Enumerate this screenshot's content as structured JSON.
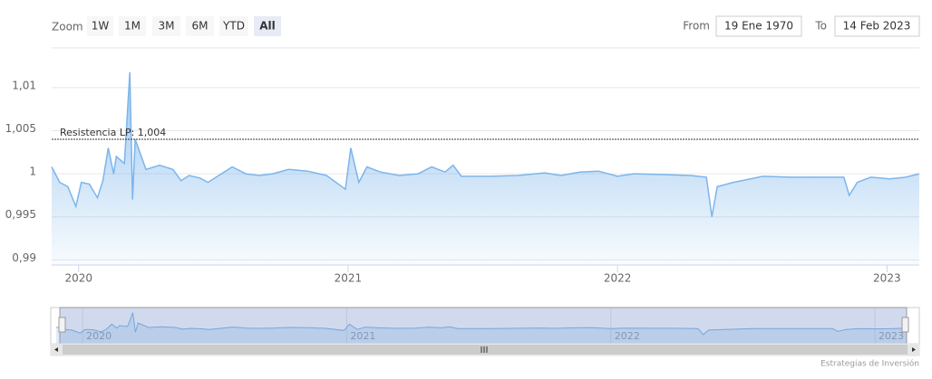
{
  "range_selector": {
    "label": "Zoom",
    "buttons": [
      "1W",
      "1M",
      "3M",
      "6M",
      "YTD",
      "All"
    ],
    "selected": 5
  },
  "date_range": {
    "from_label": "From",
    "from": "19 Ene 1970",
    "to_label": "To",
    "to": "14 Feb 2023"
  },
  "credit": "Estrategias de Inversión",
  "chart_data": {
    "type": "area",
    "color": "#7cb5ec",
    "grid": true,
    "x": [
      2019.9,
      2019.93,
      2019.96,
      2019.99,
      2020.01,
      2020.04,
      2020.07,
      2020.09,
      2020.11,
      2020.13,
      2020.14,
      2020.17,
      2020.19,
      2020.2,
      2020.21,
      2020.25,
      2020.3,
      2020.35,
      2020.38,
      2020.41,
      2020.45,
      2020.48,
      2020.52,
      2020.57,
      2020.62,
      2020.67,
      2020.72,
      2020.78,
      2020.85,
      2020.92,
      2020.99,
      2021.01,
      2021.04,
      2021.07,
      2021.12,
      2021.19,
      2021.26,
      2021.31,
      2021.36,
      2021.39,
      2021.42,
      2021.53,
      2021.63,
      2021.73,
      2021.79,
      2021.86,
      2021.93,
      2022.0,
      2022.06,
      2022.17,
      2022.27,
      2022.33,
      2022.35,
      2022.37,
      2022.43,
      2022.54,
      2022.64,
      2022.74,
      2022.84,
      2022.86,
      2022.89,
      2022.94,
      2023.01,
      2023.07,
      2023.12
    ],
    "values": [
      1.0008,
      0.999,
      0.9985,
      0.9962,
      0.999,
      0.9988,
      0.9972,
      0.9992,
      1.003,
      1.0,
      1.002,
      1.0012,
      1.0118,
      0.997,
      1.004,
      1.0005,
      1.001,
      1.0005,
      0.9992,
      0.9998,
      0.9995,
      0.999,
      0.9998,
      1.0008,
      1.0,
      0.9998,
      1.0,
      1.0005,
      1.0003,
      0.9998,
      0.9982,
      1.003,
      0.999,
      1.0008,
      1.0002,
      0.9998,
      1.0,
      1.0008,
      1.0002,
      1.001,
      0.9997,
      0.9997,
      0.9998,
      1.0001,
      0.9998,
      1.0002,
      1.0003,
      0.9997,
      1.0,
      0.9999,
      0.9998,
      0.9996,
      0.995,
      0.9985,
      0.999,
      0.9997,
      0.9996,
      0.9996,
      0.9996,
      0.9975,
      0.999,
      0.9996,
      0.9994,
      0.9996,
      1.0
    ],
    "xlim": [
      2019.9,
      2023.12
    ],
    "xticks": [
      2020,
      2021,
      2022,
      2023
    ],
    "ylim": [
      0.9894,
      1.0144
    ],
    "yticks": [
      {
        "value": 0.99,
        "label": "0,99"
      },
      {
        "value": 0.995,
        "label": "0,995"
      },
      1,
      {
        "value": 1.005,
        "label": "1,005"
      },
      {
        "value": 1.01,
        "label": "1,01"
      }
    ],
    "annotations": [
      {
        "label": "Resistencia LP: 1,004",
        "value": 1.004
      }
    ]
  }
}
